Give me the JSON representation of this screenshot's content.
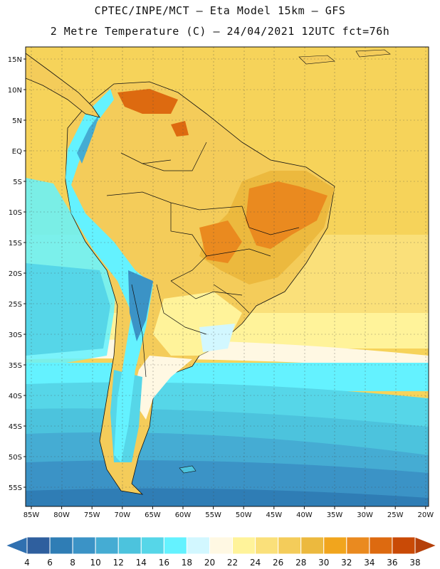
{
  "header": {
    "line1": "CPTEC/INPE/MCT –  Eta Model 15km – GFS",
    "line2": "2 Metre Temperature (C) – 24/04/2021 12UTC fct=76h"
  },
  "map": {
    "lat_labels": [
      "15N",
      "10N",
      "5N",
      "EQ",
      "5S",
      "10S",
      "15S",
      "20S",
      "25S",
      "30S",
      "35S",
      "40S",
      "45S",
      "50S",
      "55S"
    ],
    "lon_labels": [
      "85W",
      "80W",
      "75W",
      "70W",
      "65W",
      "60W",
      "55W",
      "50W",
      "45W",
      "40W",
      "35W",
      "30W",
      "25W",
      "20W"
    ]
  },
  "colorbar": {
    "labels": [
      "4",
      "6",
      "8",
      "10",
      "12",
      "14",
      "16",
      "18",
      "20",
      "22",
      "24",
      "26",
      "28",
      "30",
      "32",
      "34",
      "36",
      "38"
    ],
    "colors": [
      "#2f5f9e",
      "#2f7db5",
      "#3b93c6",
      "#45acd3",
      "#4cc3dd",
      "#56d6e8",
      "#64f2ff",
      "#d2f7ff",
      "#fff8e3",
      "#fff39a",
      "#fae07a",
      "#f4cc5a",
      "#ecb93e",
      "#f1a51d",
      "#ea8a1f",
      "#dd6a10",
      "#c94a06"
    ],
    "arrow_left": "#3070b0",
    "arrow_right": "#b5400a"
  }
}
